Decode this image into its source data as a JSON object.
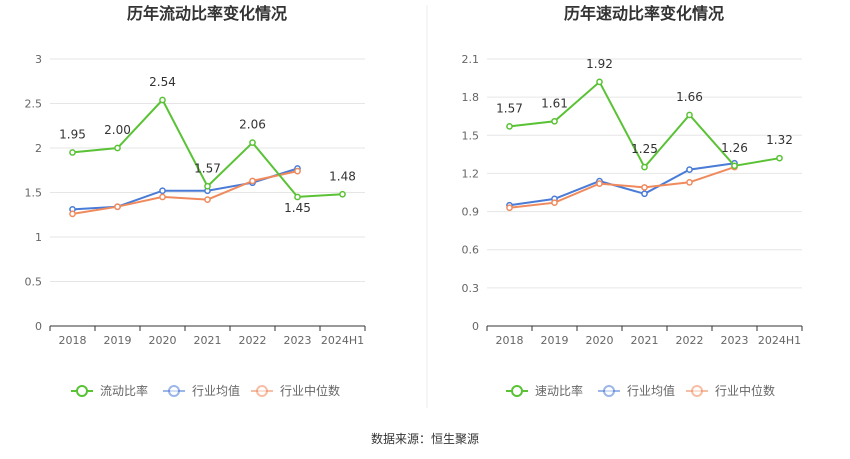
{
  "colors": {
    "current": "#5ac235",
    "industry_avg": "#4a7bd6",
    "industry_median": "#f08a5d",
    "grid": "#e6e6e6",
    "axis": "#333333"
  },
  "chart_data": [
    {
      "type": "line",
      "title": "历年流动比率变化情况",
      "categories": [
        "2018",
        "2019",
        "2020",
        "2021",
        "2022",
        "2023",
        "2024H1"
      ],
      "ylim": [
        0,
        3
      ],
      "yticks": [
        "0",
        "0.5",
        "1",
        "1.5",
        "2",
        "2.5",
        "3"
      ],
      "ytick_values": [
        0,
        0.5,
        1,
        1.5,
        2,
        2.5,
        3
      ],
      "grid": true,
      "legend_position": "bottom",
      "series": [
        {
          "name": "流动比率",
          "color_key": "current",
          "values": [
            1.95,
            2.0,
            2.54,
            1.57,
            2.06,
            1.45,
            1.48
          ],
          "labels": [
            "1.95",
            "2.00",
            "2.54",
            "1.57",
            "2.06",
            "1.45",
            "1.48"
          ]
        },
        {
          "name": "行业均值",
          "color_key": "industry_avg",
          "values": [
            1.31,
            1.34,
            1.52,
            1.52,
            1.61,
            1.77,
            null
          ]
        },
        {
          "name": "行业中位数",
          "color_key": "industry_median",
          "values": [
            1.26,
            1.34,
            1.45,
            1.42,
            1.63,
            1.74,
            null
          ]
        }
      ]
    },
    {
      "type": "line",
      "title": "历年速动比率变化情况",
      "categories": [
        "2018",
        "2019",
        "2020",
        "2021",
        "2022",
        "2023",
        "2024H1"
      ],
      "ylim": [
        0,
        2.1
      ],
      "yticks": [
        "0",
        "0.3",
        "0.6",
        "0.9",
        "1.2",
        "1.5",
        "1.8",
        "2.1"
      ],
      "ytick_values": [
        0,
        0.3,
        0.6,
        0.9,
        1.2,
        1.5,
        1.8,
        2.1
      ],
      "grid": true,
      "legend_position": "bottom",
      "series": [
        {
          "name": "速动比率",
          "color_key": "current",
          "values": [
            1.57,
            1.61,
            1.92,
            1.25,
            1.66,
            1.26,
            1.32
          ],
          "labels": [
            "1.57",
            "1.61",
            "1.92",
            "1.25",
            "1.66",
            "1.26",
            "1.32"
          ]
        },
        {
          "name": "行业均值",
          "color_key": "industry_avg",
          "values": [
            0.95,
            1.0,
            1.14,
            1.04,
            1.23,
            1.28,
            null
          ]
        },
        {
          "name": "行业中位数",
          "color_key": "industry_median",
          "values": [
            0.93,
            0.97,
            1.12,
            1.09,
            1.13,
            1.25,
            null
          ]
        }
      ]
    }
  ],
  "footer": {
    "source": "数据来源：恒生聚源"
  }
}
